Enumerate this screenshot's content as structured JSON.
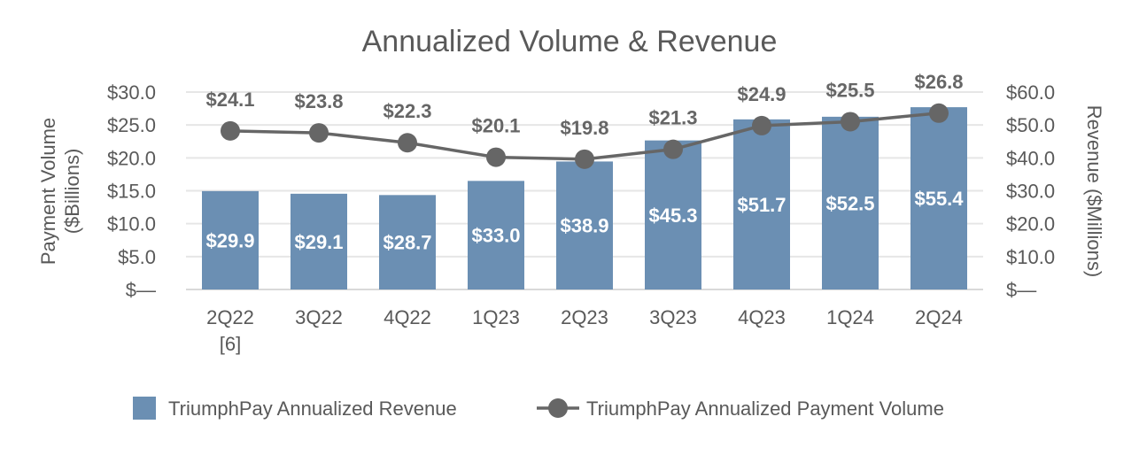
{
  "chart_data": {
    "type": "bar+line",
    "title": "Annualized Volume & Revenue",
    "categories": [
      "2Q22\n[6]",
      "3Q22",
      "4Q22",
      "1Q23",
      "2Q23",
      "3Q23",
      "4Q23",
      "1Q24",
      "2Q24"
    ],
    "ylabel_left": "Payment Volume\n($Billions)",
    "ylabel_right": "Revenue ($Millions)",
    "ylim_left": [
      0,
      30
    ],
    "ylim_right": [
      0,
      60
    ],
    "yticks_left": [
      "$—",
      "$5.0",
      "$10.0",
      "$15.0",
      "$20.0",
      "$25.0",
      "$30.0"
    ],
    "yticks_right": [
      "$—",
      "$10.0",
      "$20.0",
      "$30.0",
      "$40.0",
      "$50.0",
      "$60.0"
    ],
    "grid": true,
    "legend_position": "bottom",
    "series": [
      {
        "name": "TriumphPay Annualized Revenue",
        "type": "bar",
        "axis": "right",
        "color": "#6b8fb3",
        "values": [
          29.9,
          29.1,
          28.7,
          33.0,
          38.9,
          45.3,
          51.7,
          52.5,
          55.4
        ],
        "labels": [
          "$29.9",
          "$29.1",
          "$28.7",
          "$33.0",
          "$38.9",
          "$45.3",
          "$51.7",
          "$52.5",
          "$55.4"
        ]
      },
      {
        "name": "TriumphPay Annualized Payment Volume",
        "type": "line",
        "axis": "left",
        "color": "#666666",
        "values": [
          24.1,
          23.8,
          22.3,
          20.1,
          19.8,
          21.3,
          24.9,
          25.5,
          26.8
        ],
        "labels": [
          "$24.1",
          "$23.8",
          "$22.3",
          "$20.1",
          "$19.8",
          "$21.3",
          "$24.9",
          "$25.5",
          "$26.8"
        ]
      }
    ]
  }
}
